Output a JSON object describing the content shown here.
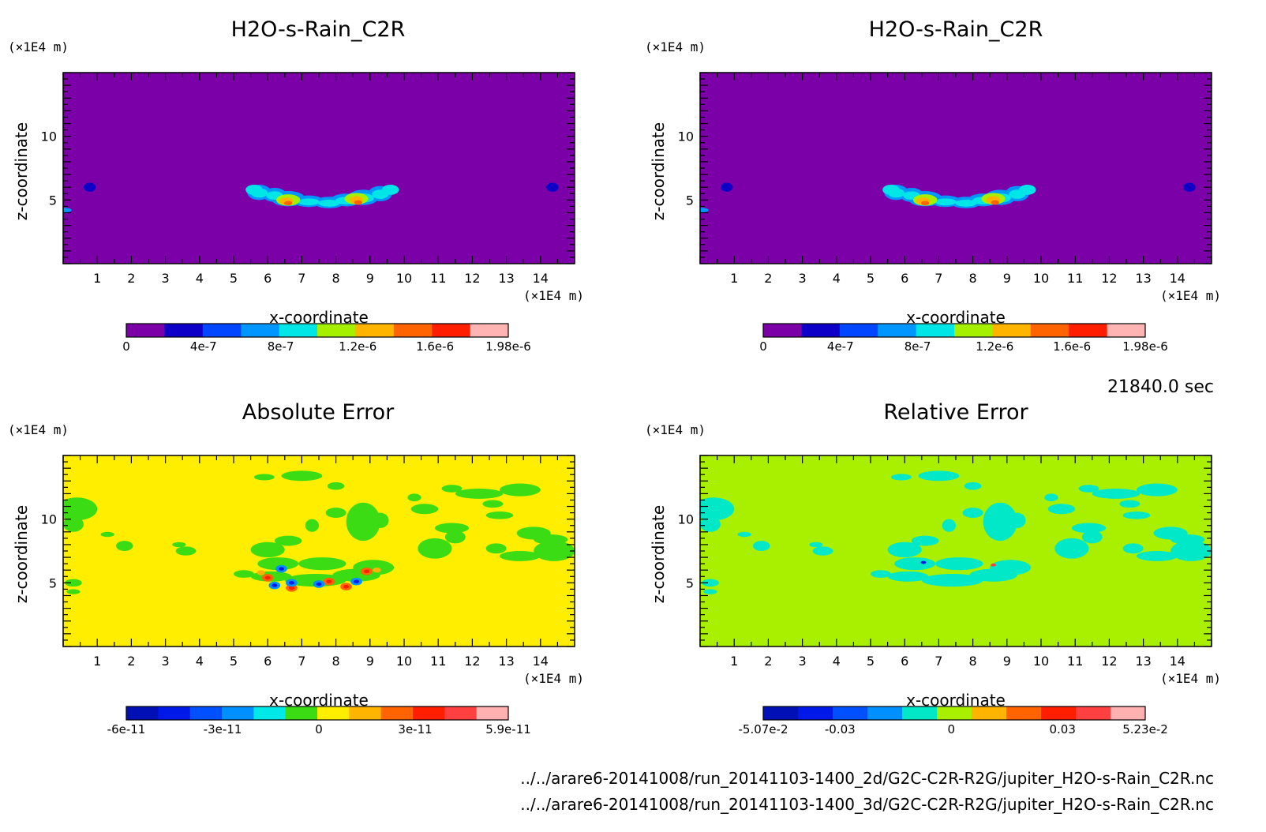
{
  "time_label": "21840.0 sec",
  "file_paths": [
    "../../arare6-20141008/run_20141103-1400_2d/G2C-C2R-R2G/jupiter_H2O-s-Rain_C2R.nc",
    "../../arare6-20141008/run_20141103-1400_3d/G2C-C2R-R2G/jupiter_H2O-s-Rain_C2R.nc"
  ],
  "colors": {
    "rain_levels": [
      "#7b00a8",
      "#0f00c8",
      "#0047ff",
      "#0096ff",
      "#00e6e6",
      "#a5f000",
      "#ffb400",
      "#ff6400",
      "#ff1e00",
      "#ffb4b4"
    ],
    "error_levels": [
      "#0010b4",
      "#0018e8",
      "#0050ff",
      "#0090ff",
      "#00e8e8",
      "#3cdc14",
      "#ffee00",
      "#ffb400",
      "#ff6400",
      "#ff1e00",
      "#ff4040",
      "#ffb0b0"
    ],
    "rel_error_levels": [
      "#0010b4",
      "#0018e8",
      "#0050ff",
      "#0090ff",
      "#00e8c8",
      "#a8f000",
      "#ffb400",
      "#ff6400",
      "#ff1e00",
      "#ff4040",
      "#ffb0b0"
    ]
  },
  "chart_data": [
    {
      "type": "heatmap",
      "title": "H2O-s-Rain_C2R",
      "xlabel": "x-coordinate",
      "ylabel": "z-coordinate",
      "x_unit": "(×1E4 m)",
      "y_unit": "(×1E4 m)",
      "xlim": [
        0,
        15
      ],
      "ylim": [
        0,
        15
      ],
      "x_ticks": [
        "1",
        "2",
        "3",
        "4",
        "5",
        "6",
        "7",
        "8",
        "9",
        "10",
        "11",
        "12",
        "13",
        "14"
      ],
      "y_ticks": [
        "5",
        "10"
      ],
      "background_value": 0,
      "colorbar_labels": [
        "0",
        "4e-7",
        "8e-7",
        "1.2e-6",
        "1.6e-6",
        "1.98e-6"
      ],
      "color_range": [
        0,
        1.98e-06
      ],
      "features": "rain cells near z = 5 between x = 5.5 and x = 9.7; small blobs near x = 0.8 and x = 14.3"
    },
    {
      "type": "heatmap",
      "title": "H2O-s-Rain_C2R",
      "xlabel": "x-coordinate",
      "ylabel": "z-coordinate",
      "x_unit": "(×1E4 m)",
      "y_unit": "(×1E4 m)",
      "xlim": [
        0,
        15
      ],
      "ylim": [
        0,
        15
      ],
      "x_ticks": [
        "1",
        "2",
        "3",
        "4",
        "5",
        "6",
        "7",
        "8",
        "9",
        "10",
        "11",
        "12",
        "13",
        "14"
      ],
      "y_ticks": [
        "5",
        "10"
      ],
      "background_value": 0,
      "colorbar_labels": [
        "0",
        "4e-7",
        "8e-7",
        "1.2e-6",
        "1.6e-6",
        "1.98e-6"
      ],
      "color_range": [
        0,
        1.98e-06
      ],
      "features": "identical to the first panel"
    },
    {
      "type": "heatmap",
      "title": "Absolute Error",
      "xlabel": "x-coordinate",
      "ylabel": "z-coordinate",
      "x_unit": "(×1E4 m)",
      "y_unit": "(×1E4 m)",
      "xlim": [
        0,
        15
      ],
      "ylim": [
        0,
        15
      ],
      "x_ticks": [
        "1",
        "2",
        "3",
        "4",
        "5",
        "6",
        "7",
        "8",
        "9",
        "10",
        "11",
        "12",
        "13",
        "14"
      ],
      "y_ticks": [
        "5",
        "10"
      ],
      "background_value": 0,
      "colorbar_labels": [
        "-6e-11",
        "-3e-11",
        "0",
        "3e-11",
        "5.9e-11"
      ],
      "color_range": [
        -6e-11,
        5.9e-11
      ],
      "features": "near-zero background with small negative patches; paired positive/negative errors near z = 5, x = 6 to 9"
    },
    {
      "type": "heatmap",
      "title": "Relative Error",
      "xlabel": "x-coordinate",
      "ylabel": "z-coordinate",
      "x_unit": "(×1E4 m)",
      "y_unit": "(×1E4 m)",
      "xlim": [
        0,
        15
      ],
      "ylim": [
        0,
        15
      ],
      "x_ticks": [
        "1",
        "2",
        "3",
        "4",
        "5",
        "6",
        "7",
        "8",
        "9",
        "10",
        "11",
        "12",
        "13",
        "14"
      ],
      "y_ticks": [
        "5",
        "10"
      ],
      "background_value": 0,
      "colorbar_labels": [
        "-5.07e-2",
        "-0.03",
        "0",
        "0.03",
        "5.23e-2"
      ],
      "color_range": [
        -0.0507,
        0.0523
      ],
      "features": "near-zero background with slightly negative patches; isolated extremes near x = 6.5 and x = 8.6, z = 6.3"
    }
  ]
}
